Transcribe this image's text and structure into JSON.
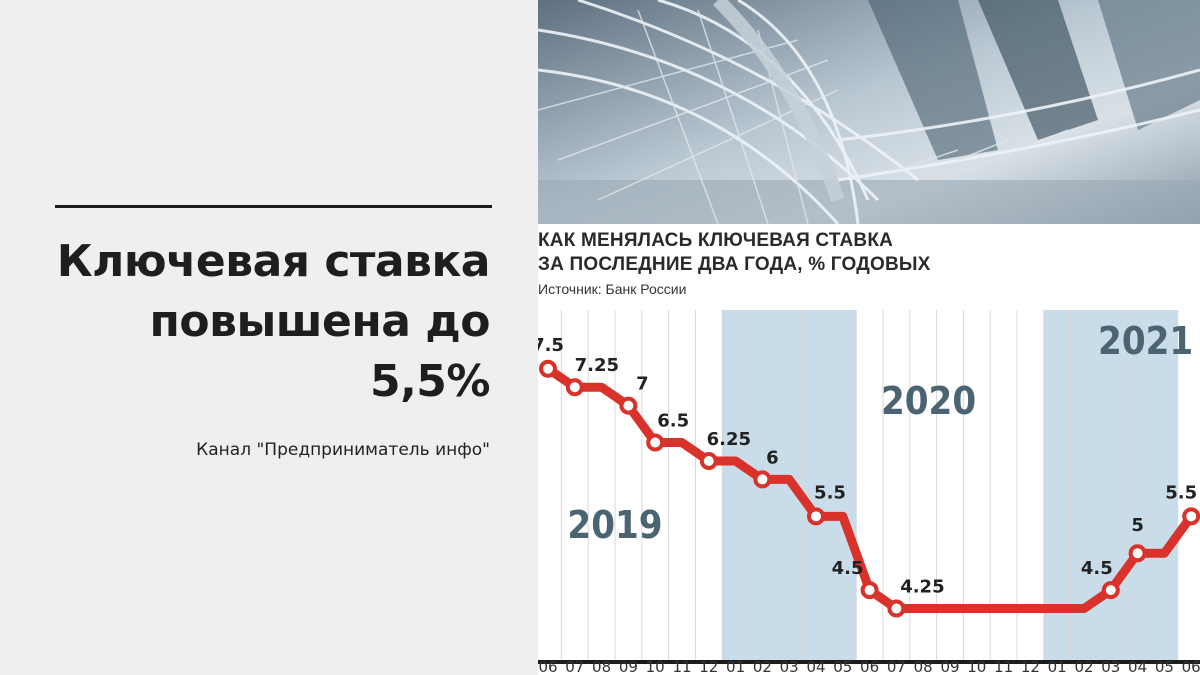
{
  "headline": {
    "line1": "Ключевая ставка",
    "line2": "повышена до",
    "line3": "5,5%"
  },
  "channel": "Канал \"Предприниматель инфо\"",
  "chart_data": {
    "type": "line",
    "title_line1": "КАК МЕНЯЛАСЬ КЛЮЧЕВАЯ СТАВКА",
    "title_line2": "ЗА ПОСЛЕДНИЕ ДВА ГОДА, % ГОДОВЫХ",
    "source": "Источник: Банк России",
    "x": [
      "06",
      "07",
      "08",
      "09",
      "10",
      "11",
      "12",
      "01",
      "02",
      "03",
      "04",
      "05",
      "06",
      "07",
      "08",
      "09",
      "10",
      "11",
      "12",
      "01",
      "02",
      "03",
      "04",
      "05",
      "06"
    ],
    "year_labels": [
      "2019",
      "2020",
      "2021"
    ],
    "points": [
      {
        "x": 0,
        "y": 7.5,
        "label": "7.5"
      },
      {
        "x": 1,
        "y": 7.25,
        "label": "7.25"
      },
      {
        "x": 3,
        "y": 7,
        "label": "7"
      },
      {
        "x": 4,
        "y": 6.5,
        "label": "6.5"
      },
      {
        "x": 6,
        "y": 6.25,
        "label": "6.25"
      },
      {
        "x": 8,
        "y": 6,
        "label": "6"
      },
      {
        "x": 10,
        "y": 5.5,
        "label": "5.5"
      },
      {
        "x": 12,
        "y": 4.5,
        "label": "4.5"
      },
      {
        "x": 13,
        "y": 4.25,
        "label": "4.25"
      },
      {
        "x": 21,
        "y": 4.5,
        "label": "4.5"
      },
      {
        "x": 22,
        "y": 5,
        "label": "5"
      },
      {
        "x": 24,
        "y": 5.5,
        "label": "5.5"
      }
    ],
    "series": [
      {
        "values": [
          {
            "x": 0,
            "y": 7.5
          },
          {
            "x": 1,
            "y": 7.25
          },
          {
            "x": 2,
            "y": 7.25
          },
          {
            "x": 3,
            "y": 7
          },
          {
            "x": 4,
            "y": 6.5
          },
          {
            "x": 5,
            "y": 6.5
          },
          {
            "x": 6,
            "y": 6.25
          },
          {
            "x": 7,
            "y": 6.25
          },
          {
            "x": 8,
            "y": 6
          },
          {
            "x": 9,
            "y": 6
          },
          {
            "x": 10,
            "y": 5.5
          },
          {
            "x": 11,
            "y": 5.5
          },
          {
            "x": 12,
            "y": 4.5
          },
          {
            "x": 13,
            "y": 4.25
          },
          {
            "x": 14,
            "y": 4.25
          },
          {
            "x": 15,
            "y": 4.25
          },
          {
            "x": 16,
            "y": 4.25
          },
          {
            "x": 17,
            "y": 4.25
          },
          {
            "x": 18,
            "y": 4.25
          },
          {
            "x": 19,
            "y": 4.25
          },
          {
            "x": 20,
            "y": 4.25
          },
          {
            "x": 21,
            "y": 4.5
          },
          {
            "x": 22,
            "y": 5
          },
          {
            "x": 23,
            "y": 5
          },
          {
            "x": 24,
            "y": 5.5
          }
        ]
      }
    ],
    "ylim": [
      4.0,
      7.7
    ],
    "colors": {
      "line": "#d8322b",
      "marker_fill": "#ffffff",
      "shade": "#c9dcea",
      "grid": "#d9d9d9",
      "text": "#222222",
      "year_text": "#4a6472"
    }
  }
}
